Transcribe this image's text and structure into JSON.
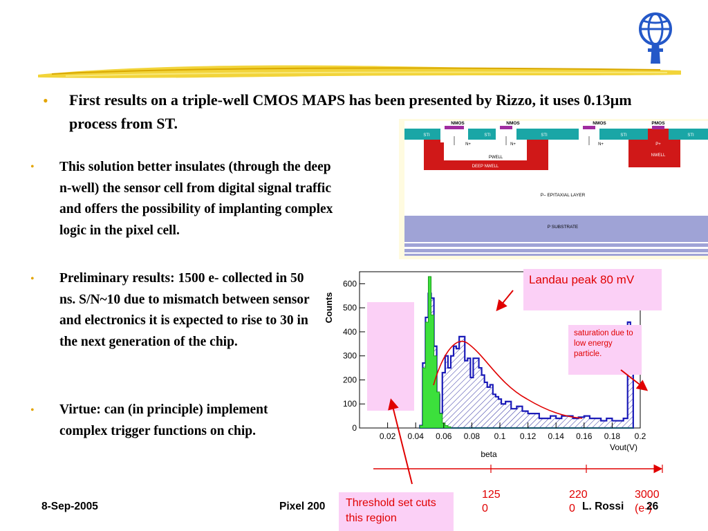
{
  "slide": {
    "main_bullet": "First results on a triple-well CMOS MAPS has been presented by Rizzo, it uses 0.13µm process from ST.",
    "sub_bullets": [
      "This solution better insulates (through the deep n-well) the sensor cell from digital signal traffic and offers the possibility of implanting complex logic in the pixel cell.",
      "Preliminary results: 1500 e- collected in 50 ns. S/N~10 due to mismatch between sensor and electronics it is expected to rise to 30 in the next generation of the chip.",
      "Virtue: can (in principle) implement complex trigger functions on chip."
    ]
  },
  "cross_section": {
    "top_labels": [
      "NMOS",
      "NMOS",
      "NMOS",
      "PMOS"
    ],
    "sti": [
      "STI",
      "STI",
      "STI",
      "STI",
      "STI"
    ],
    "n_plus": [
      "N+",
      "N+",
      "N+"
    ],
    "p_plus": "P+",
    "pwell": "PWELL",
    "deep_nwell": "DEEP NWELL",
    "nwell": "NWELL",
    "epi": "P– EPITAXIAL LAYER",
    "substrate": "P SUBSTRATE"
  },
  "histogram": {
    "ylabel": "Counts",
    "xlabel_left": "beta",
    "xlabel_right": "Vout(V)",
    "yticks": [
      "0",
      "100",
      "200",
      "300",
      "400",
      "500",
      "600"
    ],
    "xticks": [
      "0.02",
      "0.04",
      "0.06",
      "0.08",
      "0.1",
      "0.12",
      "0.14",
      "0.16",
      "0.18",
      "0.2"
    ]
  },
  "chart_data": {
    "type": "bar",
    "x": [
      0.044,
      0.046,
      0.048,
      0.05,
      0.052,
      0.054,
      0.056,
      0.058,
      0.06,
      0.062,
      0.064,
      0.066,
      0.068,
      0.07,
      0.072,
      0.074,
      0.076,
      0.078,
      0.08,
      0.082,
      0.084,
      0.086,
      0.088,
      0.09,
      0.092,
      0.094,
      0.096,
      0.098,
      0.1,
      0.102,
      0.106,
      0.11,
      0.114,
      0.118,
      0.122,
      0.126,
      0.13,
      0.134,
      0.138,
      0.142,
      0.146,
      0.15,
      0.154,
      0.158,
      0.162,
      0.166,
      0.17,
      0.174,
      0.178,
      0.182,
      0.186,
      0.19,
      0.192,
      0.194
    ],
    "series": [
      {
        "values": [
          10,
          270,
          460,
          560,
          540,
          340,
          140,
          60,
          230,
          300,
          250,
          300,
          340,
          330,
          380,
          380,
          280,
          290,
          210,
          290,
          290,
          250,
          220,
          190,
          170,
          180,
          140,
          130,
          120,
          100,
          110,
          80,
          90,
          70,
          60,
          60,
          40,
          40,
          50,
          40,
          50,
          50,
          40,
          45,
          50,
          40,
          40,
          30,
          40,
          30,
          30,
          40,
          440,
          410
        ]
      },
      {
        "values": [
          10,
          250,
          440,
          630,
          470,
          300,
          150,
          60,
          20,
          10,
          5,
          0,
          0,
          0,
          0,
          0,
          0,
          0,
          0,
          0,
          0,
          0,
          0,
          0,
          0,
          0,
          0,
          0,
          0,
          0,
          0,
          0,
          0,
          0,
          0,
          0,
          0,
          0,
          0,
          0,
          0,
          0,
          0,
          0,
          0,
          0,
          0,
          0,
          0,
          0,
          0,
          0,
          0,
          0
        ]
      }
    ],
    "xlim": [
      0.0,
      0.2
    ],
    "ylim": [
      0,
      650
    ],
    "ylabel": "Counts",
    "xlabel": "Vout(V)"
  },
  "annotations": {
    "landau": "Landau peak 80 mV",
    "saturation": "saturation due to low energy particle.",
    "threshold": "Threshold set cuts this region"
  },
  "electron_axis": {
    "tick1": "125\n0",
    "tick2": "220\n0",
    "tick3": "3000",
    "unit": "(e-)"
  },
  "footer": {
    "date": "8-Sep-2005",
    "conference": "Pixel 200",
    "author": "L. Rossi",
    "page": "26"
  }
}
